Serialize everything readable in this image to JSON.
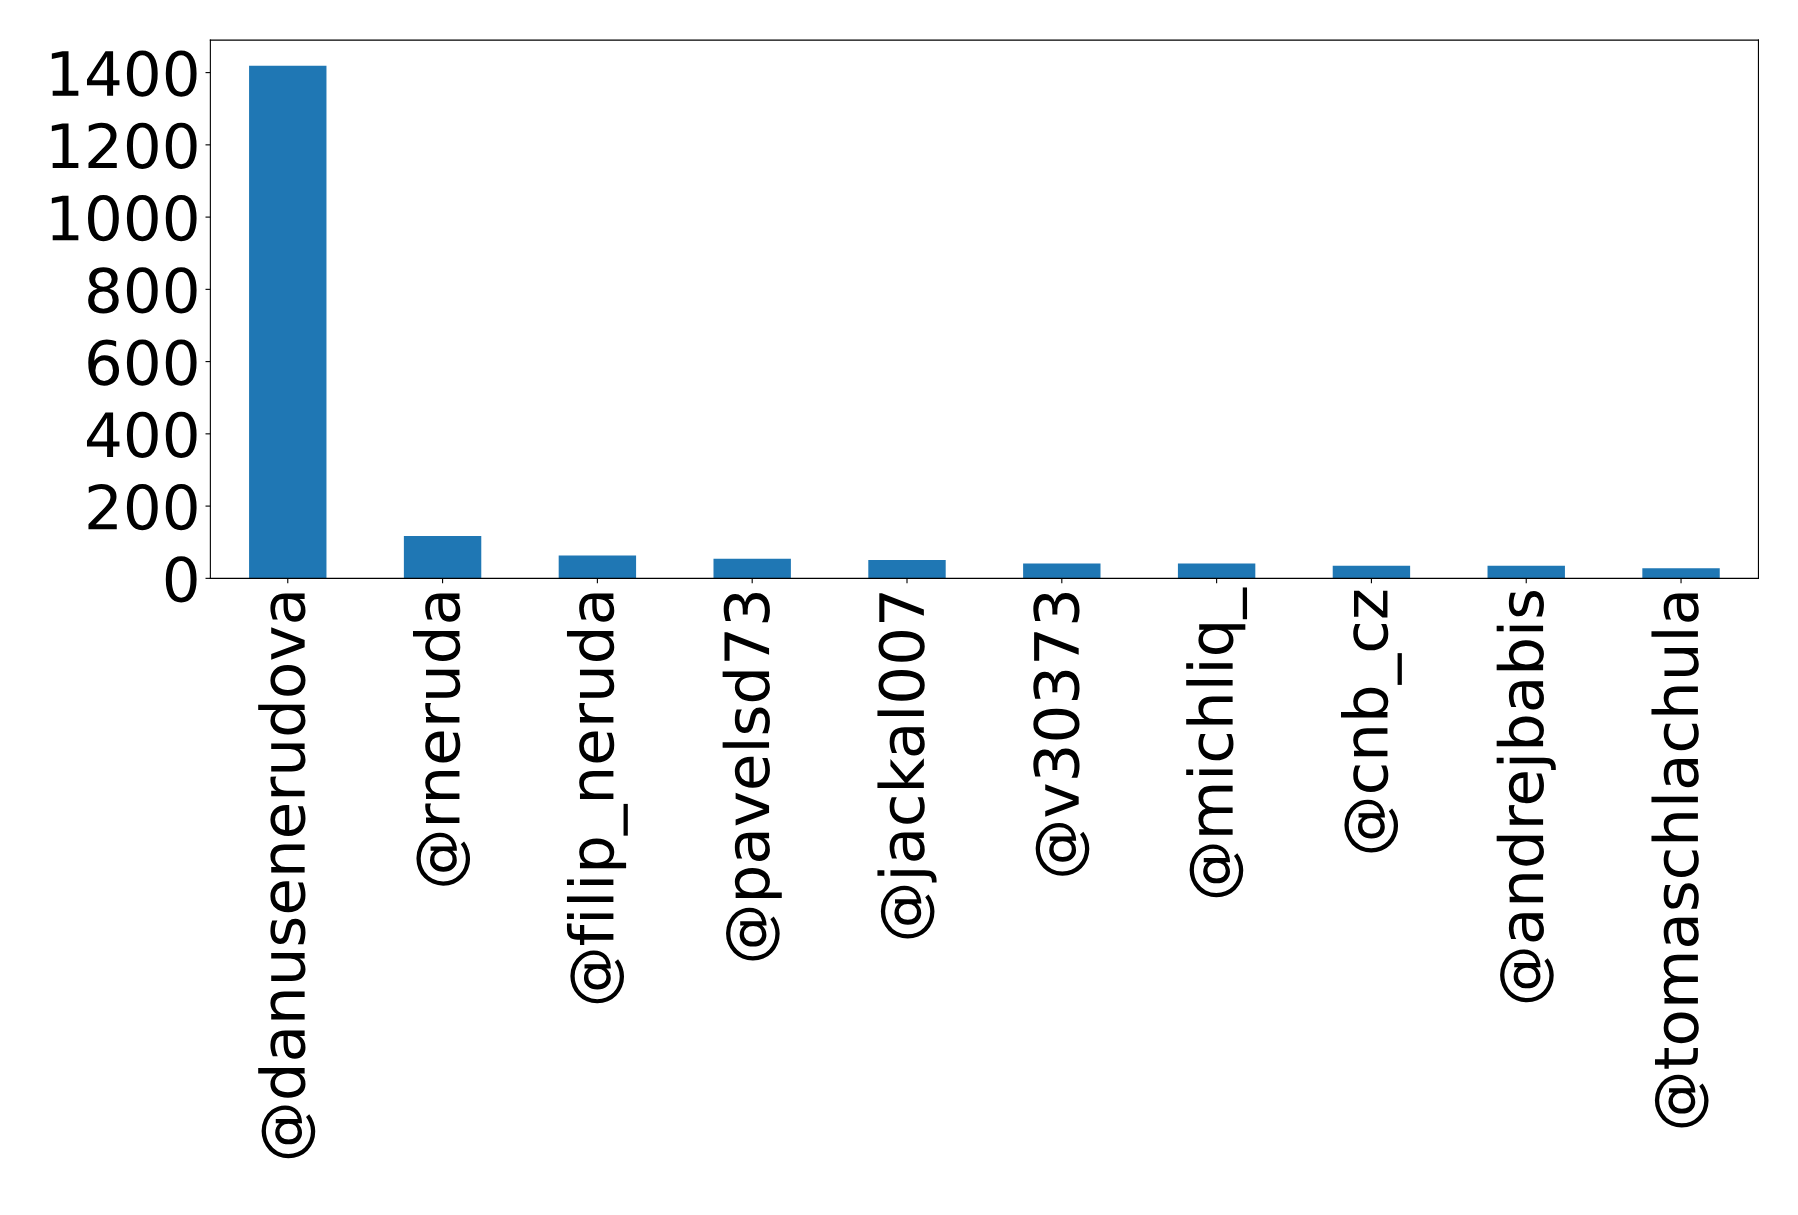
{
  "chart_data": {
    "type": "bar",
    "categories": [
      "@danusenerudova",
      "@rneruda",
      "@filip_neruda",
      "@pavelsd73",
      "@jackal007",
      "@v30373",
      "@michliq_",
      "@cnb_cz",
      "@andrejbabis",
      "@tomaschlachula"
    ],
    "values": [
      1419,
      117,
      63,
      54,
      51,
      41,
      41,
      35,
      35,
      28
    ],
    "color": "#1f77b4",
    "ylim": [
      0,
      1490
    ],
    "yticks": [
      0,
      200,
      400,
      600,
      800,
      1000,
      1200,
      1400
    ],
    "grid": false
  }
}
